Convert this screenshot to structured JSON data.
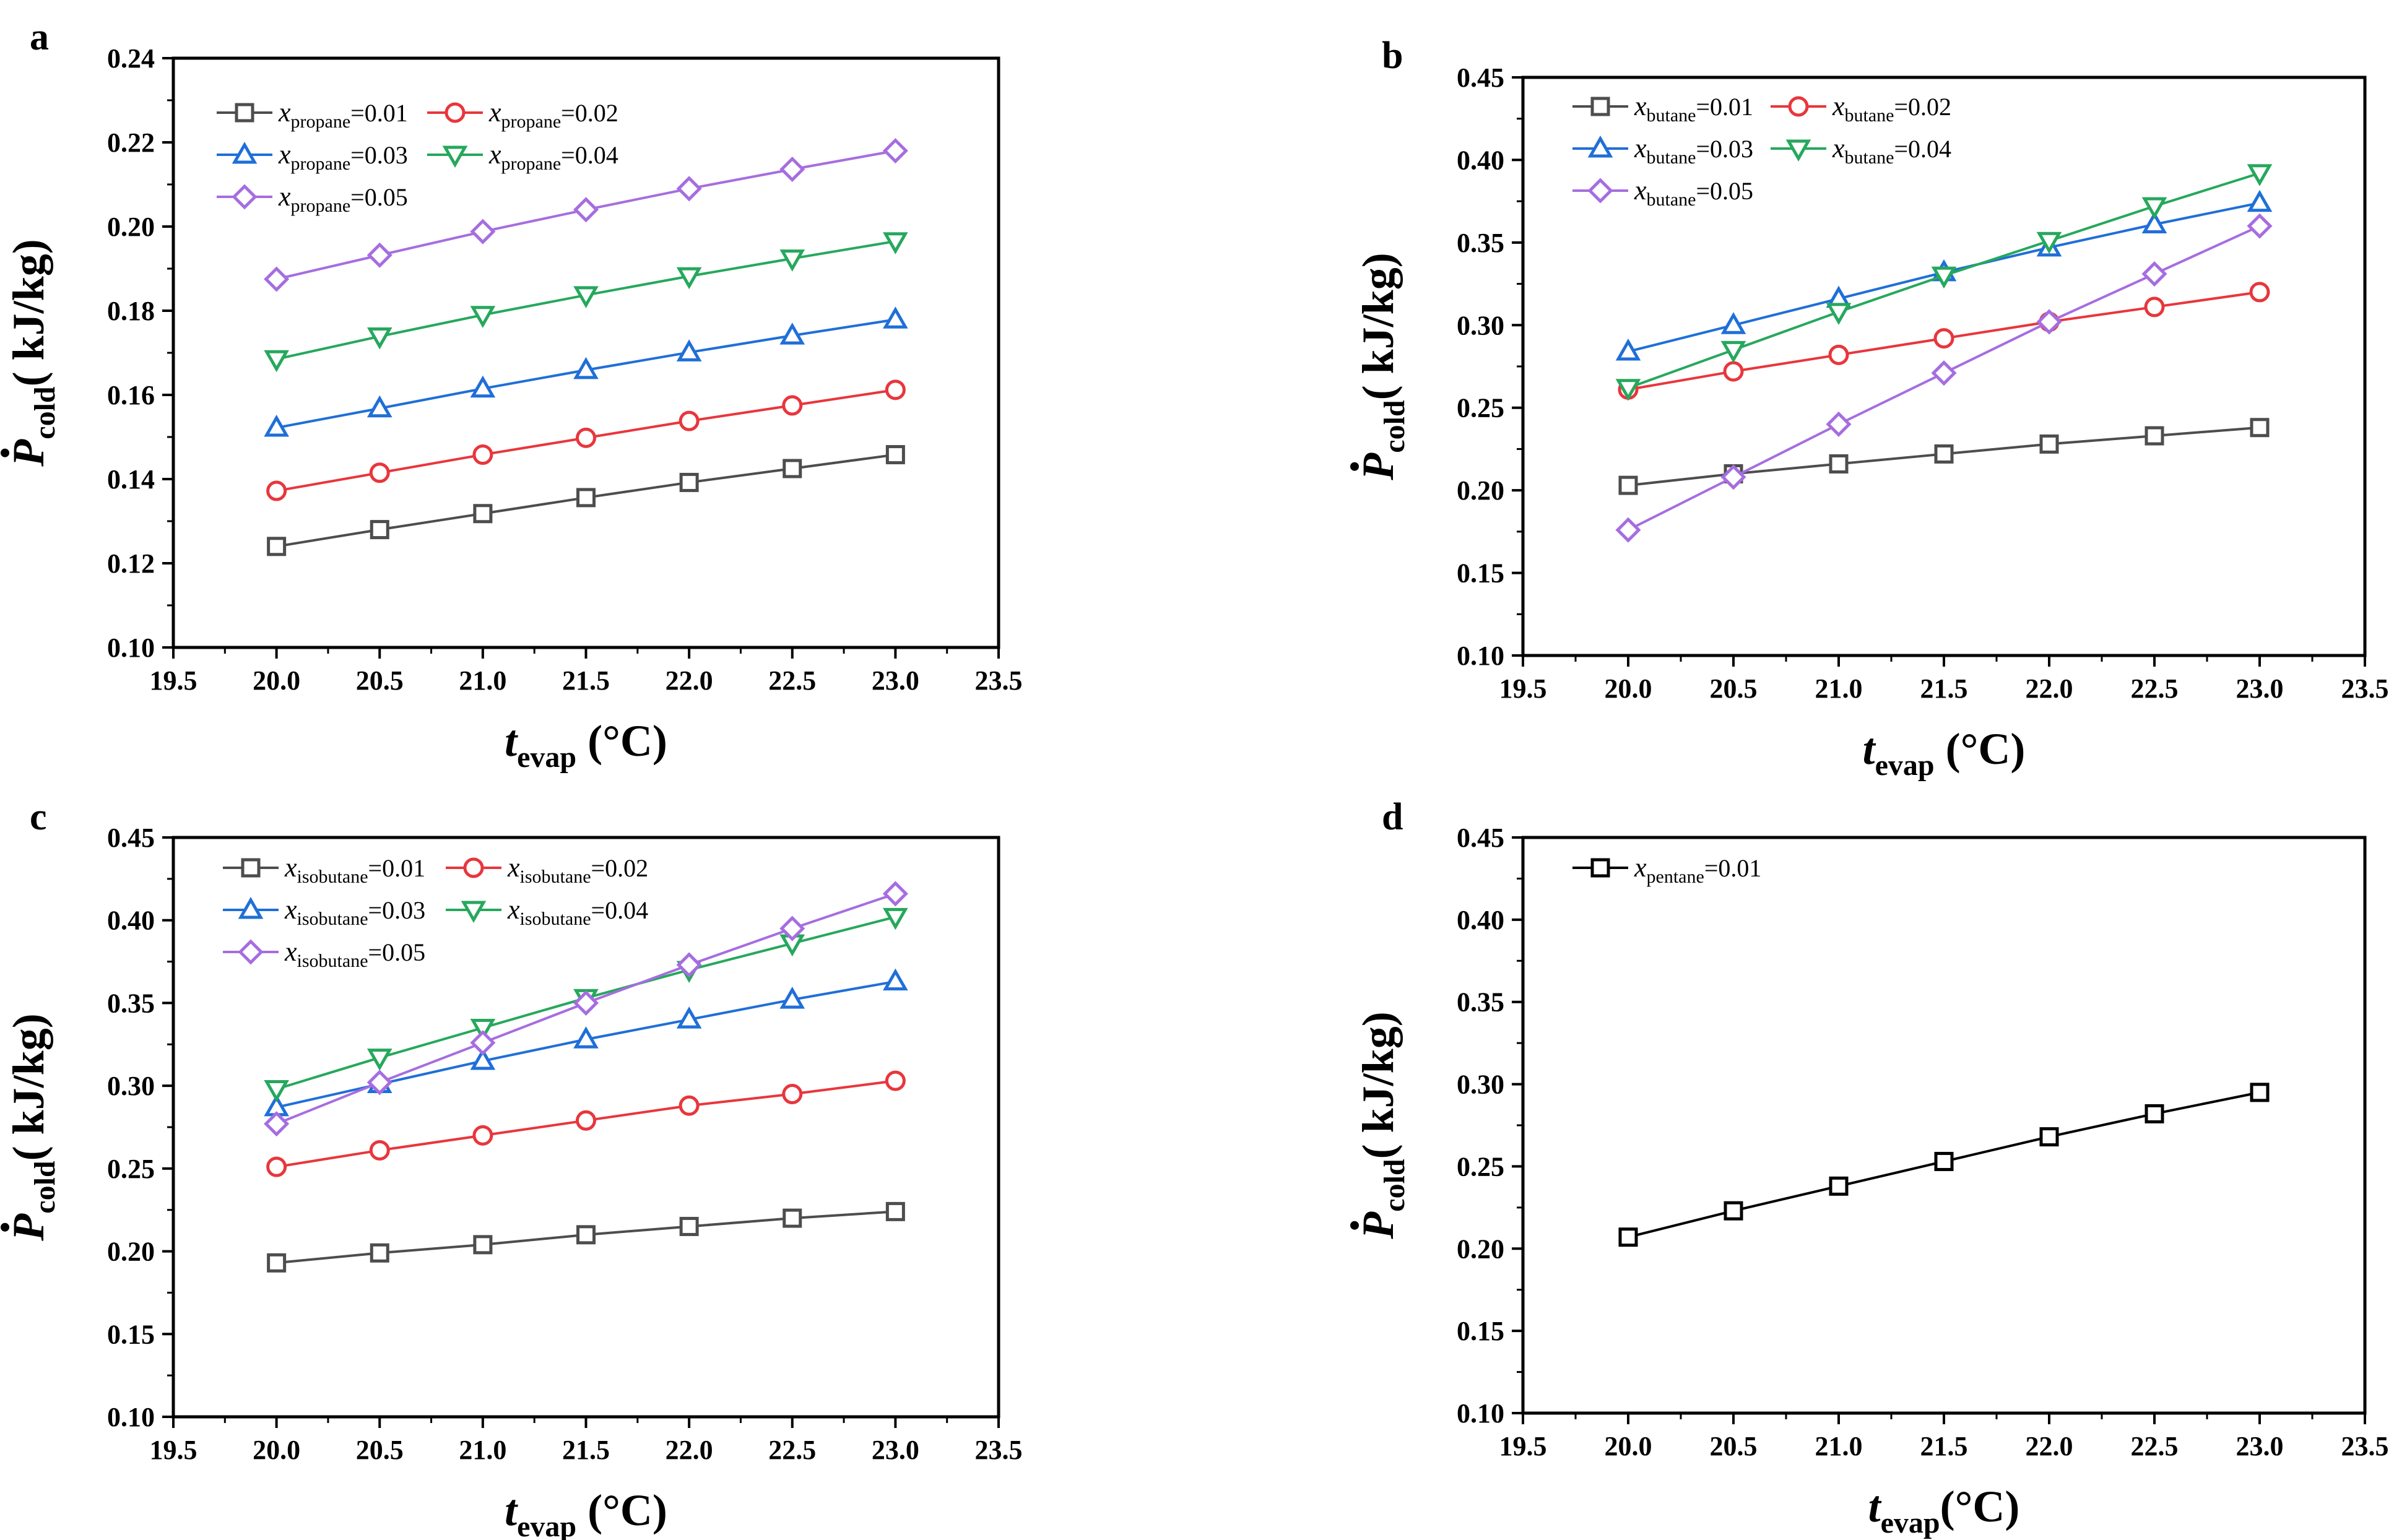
{
  "chart_data": [
    {
      "panel_label": "a",
      "type": "line",
      "xlabel_main": "t",
      "xlabel_sub": "evap",
      "xlabel_unit": " (°C)",
      "ylabel_main": "P",
      "ylabel_sub": "cold",
      "ylabel_unit": "( kJ/kg)",
      "xlim": [
        19.5,
        23.5
      ],
      "ylim": [
        0.1,
        0.24
      ],
      "xticks": [
        "19.5",
        "20.0",
        "20.5",
        "21.0",
        "21.5",
        "22.0",
        "22.5",
        "23.0",
        "23.5"
      ],
      "yticks": [
        "0.10",
        "0.12",
        "0.14",
        "0.16",
        "0.18",
        "0.20",
        "0.22",
        "0.24"
      ],
      "x": [
        20.0,
        20.5,
        21.0,
        21.5,
        22.0,
        22.5,
        23.0
      ],
      "legend_columns": 2,
      "series": [
        {
          "var": "x",
          "sub": "propane",
          "eq": "=0.01",
          "marker": "square",
          "color": "#4d4d4d",
          "values": [
            0.124,
            0.128,
            0.1318,
            0.1356,
            0.1392,
            0.1425,
            0.1458
          ]
        },
        {
          "var": "x",
          "sub": "propane",
          "eq": "=0.02",
          "marker": "circle",
          "color": "#e8363c",
          "values": [
            0.1372,
            0.1415,
            0.1458,
            0.1498,
            0.1538,
            0.1575,
            0.1612
          ]
        },
        {
          "var": "x",
          "sub": "propane",
          "eq": "=0.03",
          "marker": "triangle-up",
          "color": "#1f6fd8",
          "values": [
            0.1522,
            0.1568,
            0.1615,
            0.1659,
            0.1701,
            0.1741,
            0.1779
          ]
        },
        {
          "var": "x",
          "sub": "propane",
          "eq": "=0.04",
          "marker": "triangle-down",
          "color": "#26a85c",
          "values": [
            0.1685,
            0.1739,
            0.179,
            0.1837,
            0.1882,
            0.1924,
            0.1965
          ]
        },
        {
          "var": "x",
          "sub": "propane",
          "eq": "=0.05",
          "marker": "diamond",
          "color": "#a66de0",
          "values": [
            0.1875,
            0.1932,
            0.1988,
            0.204,
            0.209,
            0.2136,
            0.218
          ]
        }
      ]
    },
    {
      "panel_label": "b",
      "type": "line",
      "xlabel_main": "t",
      "xlabel_sub": "evap",
      "xlabel_unit": " (°C)",
      "ylabel_main": "P",
      "ylabel_sub": "cold",
      "ylabel_unit": "( kJ/kg)",
      "xlim": [
        19.5,
        23.5
      ],
      "ylim": [
        0.1,
        0.45
      ],
      "xticks": [
        "19.5",
        "20.0",
        "20.5",
        "21.0",
        "21.5",
        "22.0",
        "22.5",
        "23.0",
        "23.5"
      ],
      "yticks": [
        "0.10",
        "0.15",
        "0.20",
        "0.25",
        "0.30",
        "0.35",
        "0.40",
        "0.45"
      ],
      "x": [
        20.0,
        20.5,
        21.0,
        21.5,
        22.0,
        22.5,
        23.0
      ],
      "legend_columns": 2,
      "series": [
        {
          "var": "x",
          "sub": "butane",
          "eq": "=0.01",
          "marker": "square",
          "color": "#4d4d4d",
          "values": [
            0.203,
            0.21,
            0.216,
            0.222,
            0.228,
            0.233,
            0.238
          ]
        },
        {
          "var": "x",
          "sub": "butane",
          "eq": "=0.02",
          "marker": "circle",
          "color": "#e8363c",
          "values": [
            0.261,
            0.272,
            0.282,
            0.292,
            0.302,
            0.311,
            0.32
          ]
        },
        {
          "var": "x",
          "sub": "butane",
          "eq": "=0.03",
          "marker": "triangle-up",
          "color": "#1f6fd8",
          "values": [
            0.284,
            0.3,
            0.316,
            0.332,
            0.347,
            0.361,
            0.374
          ]
        },
        {
          "var": "x",
          "sub": "butane",
          "eq": "=0.04",
          "marker": "triangle-down",
          "color": "#26a85c",
          "values": [
            0.262,
            0.285,
            0.308,
            0.33,
            0.351,
            0.372,
            0.392
          ]
        },
        {
          "var": "x",
          "sub": "butane",
          "eq": "=0.05",
          "marker": "diamond",
          "color": "#a66de0",
          "values": [
            0.176,
            0.208,
            0.24,
            0.271,
            0.302,
            0.331,
            0.36
          ]
        }
      ]
    },
    {
      "panel_label": "c",
      "type": "line",
      "xlabel_main": "t",
      "xlabel_sub": "evap",
      "xlabel_unit": " (°C)",
      "ylabel_main": "P",
      "ylabel_sub": "cold",
      "ylabel_unit": "( kJ/kg)",
      "xlim": [
        19.5,
        23.5
      ],
      "ylim": [
        0.1,
        0.45
      ],
      "xticks": [
        "19.5",
        "20.0",
        "20.5",
        "21.0",
        "21.5",
        "22.0",
        "22.5",
        "23.0",
        "23.5"
      ],
      "yticks": [
        "0.10",
        "0.15",
        "0.20",
        "0.25",
        "0.30",
        "0.35",
        "0.40",
        "0.45"
      ],
      "x": [
        20.0,
        20.5,
        21.0,
        21.5,
        22.0,
        22.5,
        23.0
      ],
      "legend_columns": 2,
      "series": [
        {
          "var": "x",
          "sub": "isobutane",
          "eq": "=0.01",
          "marker": "square",
          "color": "#4d4d4d",
          "values": [
            0.193,
            0.199,
            0.204,
            0.21,
            0.215,
            0.22,
            0.224
          ]
        },
        {
          "var": "x",
          "sub": "isobutane",
          "eq": "=0.02",
          "marker": "circle",
          "color": "#e8363c",
          "values": [
            0.251,
            0.261,
            0.27,
            0.279,
            0.288,
            0.295,
            0.303
          ]
        },
        {
          "var": "x",
          "sub": "isobutane",
          "eq": "=0.03",
          "marker": "triangle-up",
          "color": "#1f6fd8",
          "values": [
            0.287,
            0.301,
            0.315,
            0.328,
            0.34,
            0.352,
            0.363
          ]
        },
        {
          "var": "x",
          "sub": "isobutane",
          "eq": "=0.04",
          "marker": "triangle-down",
          "color": "#26a85c",
          "values": [
            0.298,
            0.317,
            0.335,
            0.353,
            0.37,
            0.386,
            0.402
          ]
        },
        {
          "var": "x",
          "sub": "isobutane",
          "eq": "=0.05",
          "marker": "diamond",
          "color": "#a66de0",
          "values": [
            0.277,
            0.302,
            0.326,
            0.35,
            0.373,
            0.395,
            0.416
          ]
        }
      ]
    },
    {
      "panel_label": "d",
      "type": "line",
      "xlabel_main": "t",
      "xlabel_sub": "evap",
      "xlabel_unit": "(°C)",
      "ylabel_main": "P",
      "ylabel_sub": "cold",
      "ylabel_unit": "( kJ/kg)",
      "xlim": [
        19.5,
        23.5
      ],
      "ylim": [
        0.1,
        0.45
      ],
      "xticks": [
        "19.5",
        "20.0",
        "20.5",
        "21.0",
        "21.5",
        "22.0",
        "22.5",
        "23.0",
        "23.5"
      ],
      "yticks": [
        "0.10",
        "0.15",
        "0.20",
        "0.25",
        "0.30",
        "0.35",
        "0.40",
        "0.45"
      ],
      "x": [
        20.0,
        20.5,
        21.0,
        21.5,
        22.0,
        22.5,
        23.0
      ],
      "legend_columns": 1,
      "series": [
        {
          "var": "x",
          "sub": "pentane",
          "eq": "=0.01",
          "marker": "square",
          "color": "#000000",
          "values": [
            0.207,
            0.223,
            0.238,
            0.253,
            0.268,
            0.282,
            0.295
          ]
        }
      ]
    }
  ]
}
